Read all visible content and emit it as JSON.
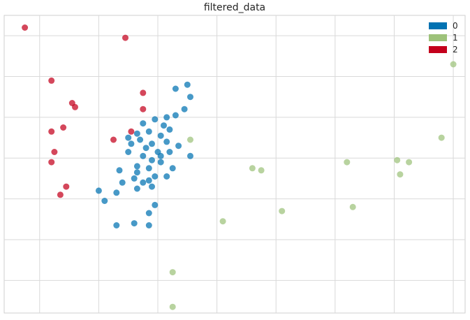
{
  "chart_data": {
    "type": "scatter",
    "title": "filtered_data",
    "xlabel": "",
    "ylabel": "",
    "grid": true,
    "legend_placement": "top-right",
    "xlim": [
      -0.6,
      7.2
    ],
    "ylim": [
      -3.8,
      3.5
    ],
    "series": [
      {
        "name": "0",
        "color": "#0072B2",
        "points": [
          [
            2.3,
            1.7
          ],
          [
            2.5,
            1.8
          ],
          [
            2.55,
            1.5
          ],
          [
            2.45,
            1.2
          ],
          [
            2.3,
            1.05
          ],
          [
            2.15,
            1.0
          ],
          [
            1.95,
            0.95
          ],
          [
            1.75,
            0.85
          ],
          [
            2.1,
            0.8
          ],
          [
            2.2,
            0.7
          ],
          [
            1.85,
            0.65
          ],
          [
            2.05,
            0.55
          ],
          [
            1.65,
            0.6
          ],
          [
            1.5,
            0.5
          ],
          [
            1.7,
            0.45
          ],
          [
            1.9,
            0.35
          ],
          [
            2.15,
            0.4
          ],
          [
            1.55,
            0.35
          ],
          [
            1.8,
            0.25
          ],
          [
            2.0,
            0.15
          ],
          [
            1.5,
            0.15
          ],
          [
            2.2,
            0.15
          ],
          [
            2.35,
            0.3
          ],
          [
            2.55,
            0.05
          ],
          [
            1.75,
            0.05
          ],
          [
            1.9,
            -0.05
          ],
          [
            2.05,
            -0.1
          ],
          [
            1.65,
            -0.2
          ],
          [
            1.85,
            -0.25
          ],
          [
            1.65,
            -0.35
          ],
          [
            1.35,
            -0.3
          ],
          [
            1.95,
            -0.45
          ],
          [
            1.85,
            -0.55
          ],
          [
            1.75,
            -0.6
          ],
          [
            1.9,
            -0.7
          ],
          [
            1.6,
            -0.5
          ],
          [
            1.4,
            -0.6
          ],
          [
            1.65,
            -0.75
          ],
          [
            1.3,
            -0.85
          ],
          [
            1.0,
            -0.8
          ],
          [
            1.1,
            -1.05
          ],
          [
            1.95,
            -1.15
          ],
          [
            1.85,
            -1.35
          ],
          [
            1.6,
            -1.6
          ],
          [
            1.85,
            -1.65
          ],
          [
            1.3,
            -1.65
          ],
          [
            2.15,
            -0.45
          ],
          [
            2.05,
            0.05
          ],
          [
            2.25,
            -0.25
          ]
        ]
      },
      {
        "name": "1",
        "color": "#9DC27A",
        "points": [
          [
            7.0,
            2.3
          ],
          [
            6.8,
            0.5
          ],
          [
            2.55,
            0.45
          ],
          [
            3.6,
            -0.25
          ],
          [
            3.75,
            -0.3
          ],
          [
            6.25,
            -0.1
          ],
          [
            6.05,
            -0.05
          ],
          [
            6.1,
            -0.4
          ],
          [
            5.2,
            -0.1
          ],
          [
            5.3,
            -1.2
          ],
          [
            4.1,
            -1.3
          ],
          [
            3.1,
            -1.55
          ],
          [
            2.25,
            -2.8
          ],
          [
            2.25,
            -3.65
          ]
        ]
      },
      {
        "name": "2",
        "color": "#C4001C",
        "points": [
          [
            -0.25,
            3.2
          ],
          [
            1.45,
            2.95
          ],
          [
            0.2,
            1.9
          ],
          [
            1.75,
            1.6
          ],
          [
            0.55,
            1.35
          ],
          [
            1.75,
            1.2
          ],
          [
            0.6,
            1.25
          ],
          [
            0.4,
            0.75
          ],
          [
            0.2,
            0.65
          ],
          [
            1.55,
            0.65
          ],
          [
            1.25,
            0.45
          ],
          [
            0.25,
            0.15
          ],
          [
            0.2,
            -0.1
          ],
          [
            0.45,
            -0.7
          ],
          [
            0.35,
            -0.9
          ]
        ]
      }
    ]
  }
}
